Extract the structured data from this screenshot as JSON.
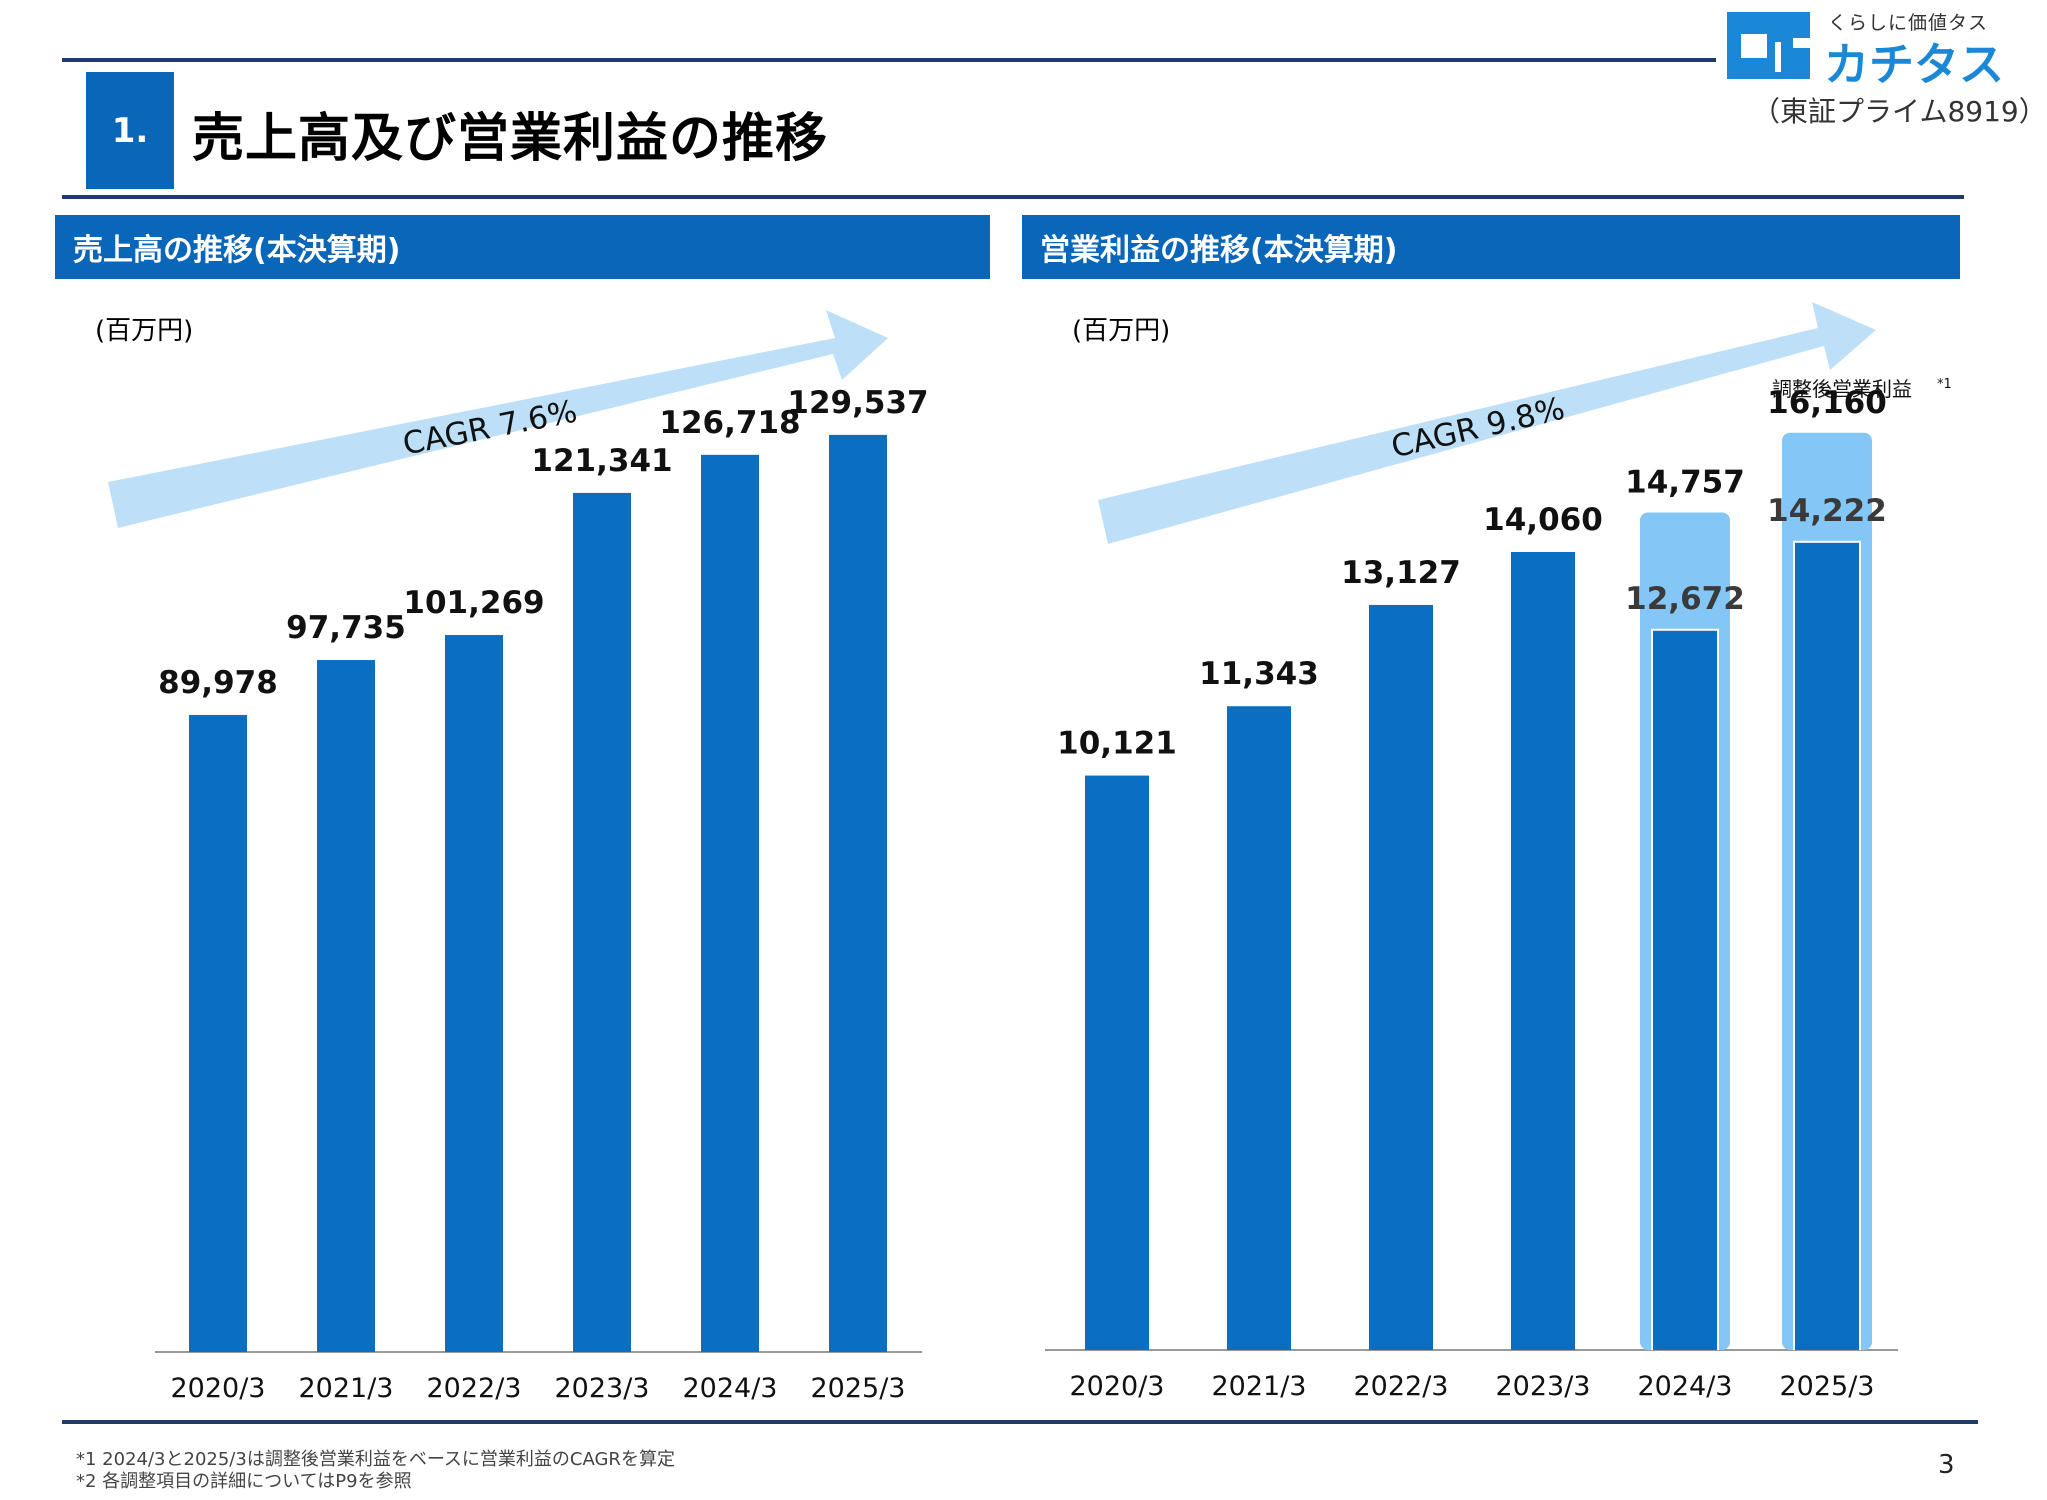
{
  "header": {
    "section_number": "1.",
    "title": "売上高及び営業利益の推移"
  },
  "logo": {
    "tagline": "くらしに価値タス",
    "name": "カチタス",
    "ticker": "（東証プライム8919）",
    "icon": "katitas-logo-mark",
    "color": "#1a88d6"
  },
  "left_section": {
    "title": "売上高の推移(本決算期)",
    "unit": "(百万円)"
  },
  "right_section": {
    "title": "営業利益の推移(本決算期)",
    "unit": "(百万円)"
  },
  "chart_data": [
    {
      "type": "bar",
      "title": "売上高の推移(本決算期)",
      "ylabel": "(百万円)",
      "categories": [
        "2020/3",
        "2021/3",
        "2022/3",
        "2023/3",
        "2024/3",
        "2025/3"
      ],
      "values": [
        89978,
        97735,
        101269,
        121341,
        126718,
        129537
      ],
      "value_labels": [
        "89,978",
        "97,735",
        "101,269",
        "121,341",
        "126,718",
        "129,537"
      ],
      "ylim": [
        0,
        150000
      ],
      "cagr_label": "CAGR 7.6%",
      "bar_color": "#0a6fc2",
      "arrow_color": "#bde0f8"
    },
    {
      "type": "bar",
      "title": "営業利益の推移(本決算期)",
      "ylabel": "(百万円)",
      "categories": [
        "2020/3",
        "2021/3",
        "2022/3",
        "2023/3",
        "2024/3",
        "2025/3"
      ],
      "series": [
        {
          "name": "営業利益",
          "values": [
            10121,
            11343,
            13127,
            14060,
            12672,
            14222
          ],
          "value_labels": [
            "10,121",
            "11,343",
            "13,127",
            "14,060",
            "12,672",
            "14,222"
          ]
        },
        {
          "name": "調整後営業利益",
          "values": [
            null,
            null,
            null,
            null,
            14757,
            16160
          ],
          "value_labels": [
            "",
            "",
            "",
            "",
            "14,757",
            "16,160"
          ]
        }
      ],
      "adjusted_legend": "調整後営業利益",
      "adjusted_legend_note": "*1",
      "ylim": [
        0,
        18500
      ],
      "cagr_label": "CAGR 9.8%",
      "bar_color": "#0a6fc2",
      "adjusted_color": "#84c6f6",
      "arrow_color": "#bde0f8"
    }
  ],
  "footnotes": [
    "*1 2024/3と2025/3は調整後営業利益をベースに営業利益のCAGRを算定",
    "*2 各調整項目の詳細についてはP9を参照"
  ],
  "page_number": "3"
}
